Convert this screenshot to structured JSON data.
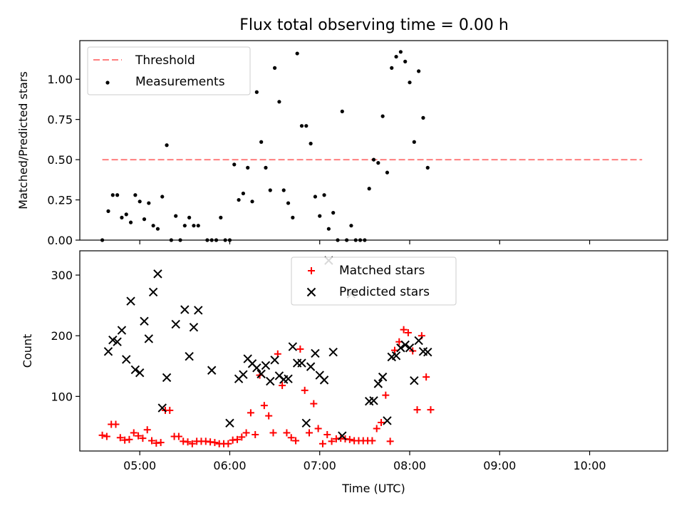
{
  "figure": {
    "title": "Flux total observing time = 0.00 h"
  },
  "chart_data": [
    {
      "type": "scatter",
      "ylabel": "Matched/Predicted stars",
      "xlabel": "",
      "xlim": [
        "04:20",
        "10:52"
      ],
      "ylim": [
        0,
        1.24
      ],
      "yticks": [
        0.0,
        0.25,
        0.5,
        0.75,
        1.0
      ],
      "ytick_labels": [
        "0.00",
        "0.25",
        "0.50",
        "0.75",
        "1.00"
      ],
      "xticks": [
        "05:00",
        "06:00",
        "07:00",
        "08:00",
        "09:00",
        "10:00"
      ],
      "show_xtick_labels": false,
      "grid": false,
      "legend": {
        "placement": "upper-left",
        "entries": [
          "Threshold",
          "Measurements"
        ]
      },
      "colors": {
        "threshold": "#ff7f7f",
        "measurements": "#000000"
      },
      "threshold": {
        "name": "Threshold",
        "value": 0.5,
        "x_start": "04:35",
        "x_end": "10:35",
        "style": "dashed"
      },
      "series": [
        {
          "name": "Measurements",
          "marker": "dot",
          "points": [
            [
              "04:35",
              0.0
            ],
            [
              "04:39",
              0.18
            ],
            [
              "04:42",
              0.28
            ],
            [
              "04:45",
              0.28
            ],
            [
              "04:48",
              0.14
            ],
            [
              "04:51",
              0.16
            ],
            [
              "04:54",
              0.11
            ],
            [
              "04:57",
              0.28
            ],
            [
              "05:00",
              0.24
            ],
            [
              "05:03",
              0.13
            ],
            [
              "05:06",
              0.23
            ],
            [
              "05:09",
              0.09
            ],
            [
              "05:12",
              0.07
            ],
            [
              "05:15",
              0.27
            ],
            [
              "05:18",
              0.59
            ],
            [
              "05:21",
              0.0
            ],
            [
              "05:24",
              0.15
            ],
            [
              "05:27",
              0.0
            ],
            [
              "05:30",
              0.09
            ],
            [
              "05:33",
              0.14
            ],
            [
              "05:36",
              0.09
            ],
            [
              "05:39",
              0.09
            ],
            [
              "05:45",
              0.0
            ],
            [
              "05:48",
              0.0
            ],
            [
              "05:51",
              0.0
            ],
            [
              "05:54",
              0.14
            ],
            [
              "05:57",
              0.0
            ],
            [
              "06:00",
              0.0
            ],
            [
              "06:03",
              0.47
            ],
            [
              "06:06",
              0.25
            ],
            [
              "06:09",
              0.29
            ],
            [
              "06:12",
              0.45
            ],
            [
              "06:15",
              0.24
            ],
            [
              "06:18",
              0.92
            ],
            [
              "06:21",
              0.61
            ],
            [
              "06:24",
              0.45
            ],
            [
              "06:27",
              0.31
            ],
            [
              "06:30",
              1.07
            ],
            [
              "06:33",
              0.86
            ],
            [
              "06:36",
              0.31
            ],
            [
              "06:39",
              0.23
            ],
            [
              "06:42",
              0.14
            ],
            [
              "06:45",
              1.16
            ],
            [
              "06:48",
              0.71
            ],
            [
              "06:51",
              0.71
            ],
            [
              "06:54",
              0.6
            ],
            [
              "06:57",
              0.27
            ],
            [
              "07:00",
              0.15
            ],
            [
              "07:03",
              0.28
            ],
            [
              "07:06",
              0.07
            ],
            [
              "07:09",
              0.17
            ],
            [
              "07:12",
              0.0
            ],
            [
              "07:15",
              0.8
            ],
            [
              "07:18",
              0.0
            ],
            [
              "07:21",
              0.09
            ],
            [
              "07:24",
              0.0
            ],
            [
              "07:27",
              0.0
            ],
            [
              "07:30",
              0.0
            ],
            [
              "07:33",
              0.32
            ],
            [
              "07:36",
              0.5
            ],
            [
              "07:39",
              0.48
            ],
            [
              "07:42",
              0.77
            ],
            [
              "07:45",
              0.42
            ],
            [
              "07:48",
              1.07
            ],
            [
              "07:51",
              1.14
            ],
            [
              "07:54",
              1.17
            ],
            [
              "07:57",
              1.11
            ],
            [
              "08:00",
              0.98
            ],
            [
              "08:03",
              0.61
            ],
            [
              "08:06",
              1.05
            ],
            [
              "08:09",
              0.76
            ],
            [
              "08:12",
              0.45
            ]
          ]
        }
      ]
    },
    {
      "type": "scatter",
      "ylabel": "Count",
      "xlabel": "Time (UTC)",
      "xlim": [
        "04:20",
        "10:52"
      ],
      "ylim": [
        10,
        340
      ],
      "yticks": [
        100,
        200,
        300
      ],
      "ytick_labels": [
        "100",
        "200",
        "300"
      ],
      "xticks": [
        "05:00",
        "06:00",
        "07:00",
        "08:00",
        "09:00",
        "10:00"
      ],
      "xtick_labels": [
        "05:00",
        "06:00",
        "07:00",
        "08:00",
        "09:00",
        "10:00"
      ],
      "grid": false,
      "legend": {
        "placement": "upper-center",
        "entries": [
          "Matched stars",
          "Predicted stars"
        ]
      },
      "colors": {
        "matched": "#ff0000",
        "predicted": "#000000"
      },
      "series": [
        {
          "name": "Matched stars",
          "marker": "plus",
          "points": [
            [
              "04:35",
              36
            ],
            [
              "04:38",
              34
            ],
            [
              "04:41",
              54
            ],
            [
              "04:44",
              54
            ],
            [
              "04:47",
              32
            ],
            [
              "04:50",
              28
            ],
            [
              "04:53",
              29
            ],
            [
              "04:56",
              40
            ],
            [
              "04:59",
              35
            ],
            [
              "05:02",
              31
            ],
            [
              "05:05",
              45
            ],
            [
              "05:08",
              27
            ],
            [
              "05:11",
              23
            ],
            [
              "05:14",
              24
            ],
            [
              "05:17",
              77
            ],
            [
              "05:20",
              77
            ],
            [
              "05:23",
              34
            ],
            [
              "05:26",
              34
            ],
            [
              "05:29",
              26
            ],
            [
              "05:32",
              25
            ],
            [
              "05:35",
              22
            ],
            [
              "05:38",
              26
            ],
            [
              "05:41",
              26
            ],
            [
              "05:44",
              26
            ],
            [
              "05:47",
              25
            ],
            [
              "05:50",
              24
            ],
            [
              "05:53",
              22
            ],
            [
              "05:56",
              22
            ],
            [
              "05:59",
              22
            ],
            [
              "06:02",
              28
            ],
            [
              "06:05",
              29
            ],
            [
              "06:08",
              33
            ],
            [
              "06:11",
              40
            ],
            [
              "06:14",
              73
            ],
            [
              "06:17",
              37
            ],
            [
              "06:20",
              135
            ],
            [
              "06:23",
              85
            ],
            [
              "06:26",
              68
            ],
            [
              "06:29",
              40
            ],
            [
              "06:32",
              170
            ],
            [
              "06:35",
              118
            ],
            [
              "06:38",
              40
            ],
            [
              "06:41",
              32
            ],
            [
              "06:44",
              27
            ],
            [
              "06:47",
              178
            ],
            [
              "06:50",
              110
            ],
            [
              "06:53",
              40
            ],
            [
              "06:56",
              88
            ],
            [
              "06:59",
              47
            ],
            [
              "07:02",
              22
            ],
            [
              "07:05",
              37
            ],
            [
              "07:08",
              26
            ],
            [
              "07:11",
              30
            ],
            [
              "07:14",
              31
            ],
            [
              "07:17",
              30
            ],
            [
              "07:20",
              29
            ],
            [
              "07:23",
              27
            ],
            [
              "07:26",
              27
            ],
            [
              "07:29",
              27
            ],
            [
              "07:32",
              27
            ],
            [
              "07:35",
              27
            ],
            [
              "07:38",
              47
            ],
            [
              "07:41",
              57
            ],
            [
              "07:44",
              102
            ],
            [
              "07:47",
              26
            ],
            [
              "07:50",
              176
            ],
            [
              "07:53",
              190
            ],
            [
              "07:56",
              210
            ],
            [
              "07:59",
              205
            ],
            [
              "08:02",
              175
            ],
            [
              "08:05",
              78
            ],
            [
              "08:08",
              200
            ],
            [
              "08:11",
              132
            ],
            [
              "08:14",
              78
            ]
          ]
        },
        {
          "name": "Predicted stars",
          "marker": "x",
          "points": [
            [
              "04:39",
              174
            ],
            [
              "04:42",
              193
            ],
            [
              "04:45",
              190
            ],
            [
              "04:48",
              209
            ],
            [
              "04:51",
              161
            ],
            [
              "04:54",
              257
            ],
            [
              "04:57",
              144
            ],
            [
              "05:00",
              139
            ],
            [
              "05:03",
              224
            ],
            [
              "05:06",
              195
            ],
            [
              "05:09",
              272
            ],
            [
              "05:12",
              302
            ],
            [
              "05:15",
              81
            ],
            [
              "05:18",
              131
            ],
            [
              "05:24",
              219
            ],
            [
              "05:30",
              243
            ],
            [
              "05:33",
              166
            ],
            [
              "05:36",
              214
            ],
            [
              "05:39",
              242
            ],
            [
              "05:48",
              143
            ],
            [
              "06:00",
              56
            ],
            [
              "06:06",
              129
            ],
            [
              "06:09",
              136
            ],
            [
              "06:12",
              162
            ],
            [
              "06:15",
              154
            ],
            [
              "06:18",
              147
            ],
            [
              "06:21",
              137
            ],
            [
              "06:24",
              151
            ],
            [
              "06:27",
              125
            ],
            [
              "06:30",
              160
            ],
            [
              "06:33",
              134
            ],
            [
              "06:36",
              128
            ],
            [
              "06:39",
              129
            ],
            [
              "06:42",
              182
            ],
            [
              "06:45",
              155
            ],
            [
              "06:48",
              155
            ],
            [
              "06:51",
              56
            ],
            [
              "06:54",
              149
            ],
            [
              "06:57",
              171
            ],
            [
              "07:00",
              135
            ],
            [
              "07:03",
              127
            ],
            [
              "07:06",
              324
            ],
            [
              "07:09",
              173
            ],
            [
              "07:15",
              35
            ],
            [
              "07:21",
              269
            ],
            [
              "07:33",
              92
            ],
            [
              "07:36",
              93
            ],
            [
              "07:39",
              121
            ],
            [
              "07:42",
              132
            ],
            [
              "07:45",
              60
            ],
            [
              "07:48",
              165
            ],
            [
              "07:51",
              167
            ],
            [
              "07:54",
              180
            ],
            [
              "07:57",
              185
            ],
            [
              "08:00",
              180
            ],
            [
              "08:03",
              126
            ],
            [
              "08:06",
              192
            ],
            [
              "08:09",
              174
            ],
            [
              "08:12",
              173
            ]
          ]
        }
      ]
    }
  ]
}
